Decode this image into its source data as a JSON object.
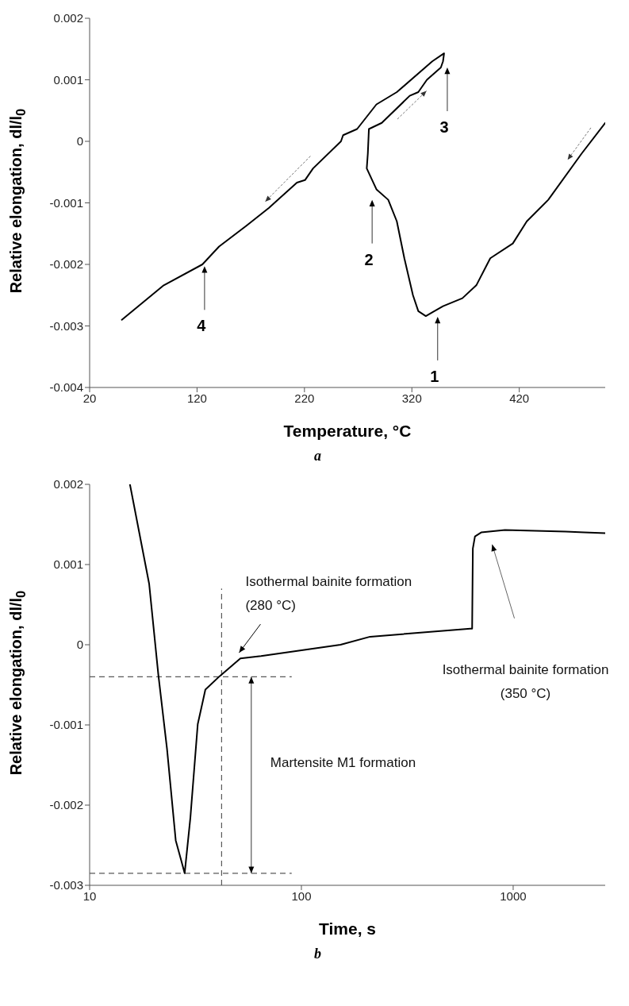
{
  "chart_data": [
    {
      "type": "line",
      "title": "a",
      "xlabel": "Temperature, °C",
      "ylabel": "Relative elongation, dl/l$_{0}$",
      "series": [
        {
          "color": "#000000",
          "x": [
            500,
            478,
            447,
            427,
            414,
            393,
            380,
            367,
            349,
            339,
            333,
            326,
            321,
            313,
            306,
            298,
            287,
            278,
            279,
            280,
            292,
            318,
            326,
            334,
            347,
            349,
            350,
            339,
            306,
            287,
            269,
            256,
            254,
            228,
            220.5,
            213,
            187,
            166,
            140.5,
            125,
            89,
            50
          ],
          "values": [
            0.0003,
            -0.0002,
            -0.00095,
            -0.0013,
            -0.00166,
            -0.0019,
            -0.00234,
            -0.00255,
            -0.00268,
            -0.00278,
            -0.00284,
            -0.00276,
            -0.0025,
            -0.0019,
            -0.0013,
            -0.00095,
            -0.00078,
            -0.00044,
            -0.0002,
            0.0002,
            0.0003,
            0.00074,
            0.0008,
            0.001,
            0.0012,
            0.0013,
            0.00143,
            0.0013,
            0.0008,
            0.0006,
            0.0002,
            0.0001,
            0,
            -0.00044,
            -0.00063,
            -0.00067,
            -0.00108,
            -0.00137,
            -0.00171,
            -0.002,
            -0.00234,
            -0.0029
          ]
        }
      ],
      "xlim": [
        20,
        500
      ],
      "xticks": [
        20,
        120,
        220,
        320,
        420
      ],
      "ylim": [
        -0.004,
        0.002
      ],
      "yticks": [
        -0.004,
        -0.003,
        -0.002,
        -0.001,
        0,
        0.001,
        0.002
      ],
      "annotations": [
        "1",
        "2",
        "3",
        "4"
      ]
    },
    {
      "type": "line",
      "title": "b",
      "xlabel": "Time, s",
      "ylabel": "Relative elongation, dl/l$_{0}$",
      "log": "x",
      "series": [
        {
          "color": "#000000",
          "x": [
            15.5,
            19.1,
            21.1,
            23.2,
            25.5,
            27.2,
            28.1,
            29.9,
            32.4,
            35.2,
            41.2,
            51.5,
            64.5,
            153,
            211,
            628,
            640,
            645,
            660,
            706,
            915,
            1770,
            2166,
            2720
          ],
          "values": [
            0.002,
            0.00076,
            -0.00037,
            -0.0013,
            -0.00244,
            -0.00271,
            -0.00285,
            -0.00216,
            -0.00099,
            -0.00056,
            -0.00039,
            -0.00017,
            -0.00014,
            0,
            0.0001,
            0.0002,
            0.0002,
            0.0012,
            0.00135,
            0.0014,
            0.00143,
            0.00141,
            0.0014,
            0.00139
          ]
        }
      ],
      "xlim": [
        10,
        2720
      ],
      "xticks": [
        10,
        100,
        1000
      ],
      "ylim": [
        -0.003,
        0.002
      ],
      "yticks": [
        -0.003,
        -0.002,
        -0.001,
        0,
        0.001,
        0.002
      ],
      "ref_lines": [
        {
          "axis": "y",
          "value": -0.0004,
          "color": "#595959",
          "line_style": "dashed"
        },
        {
          "axis": "y",
          "value": -0.00285,
          "color": "#595959",
          "line_style": "dashed"
        },
        {
          "axis": "x",
          "value": 42,
          "color": "#595959",
          "line_style": "dashed"
        }
      ],
      "annotations": [
        "Isothermal bainite formation (280 °C)",
        "Isothermal bainite formation (350 °C)",
        "Martensite M1 formation"
      ]
    }
  ]
}
